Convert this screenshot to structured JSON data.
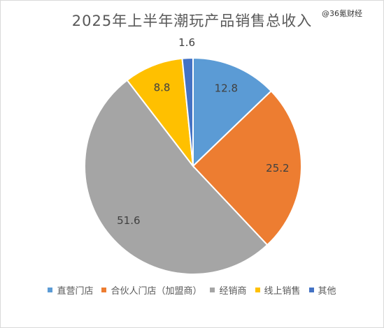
{
  "watermark": "@36氪财经",
  "chart_data": {
    "type": "pie",
    "title": "2025年上半年潮玩产品销售总收入",
    "categories": [
      "直营门店",
      "合伙人门店（加盟商）",
      "经销商",
      "线上销售",
      "其他"
    ],
    "values": [
      12.8,
      25.2,
      51.6,
      8.8,
      1.6
    ],
    "data_labels": [
      "12.8",
      "25.2",
      "51.6",
      "8.8",
      "1.6"
    ],
    "colors": [
      "#5B9BD5",
      "#ED7D31",
      "#A5A5A5",
      "#FFC000",
      "#4472C4"
    ],
    "start_angle": "12 o'clock",
    "direction": "clockwise",
    "legend": "bottom"
  }
}
